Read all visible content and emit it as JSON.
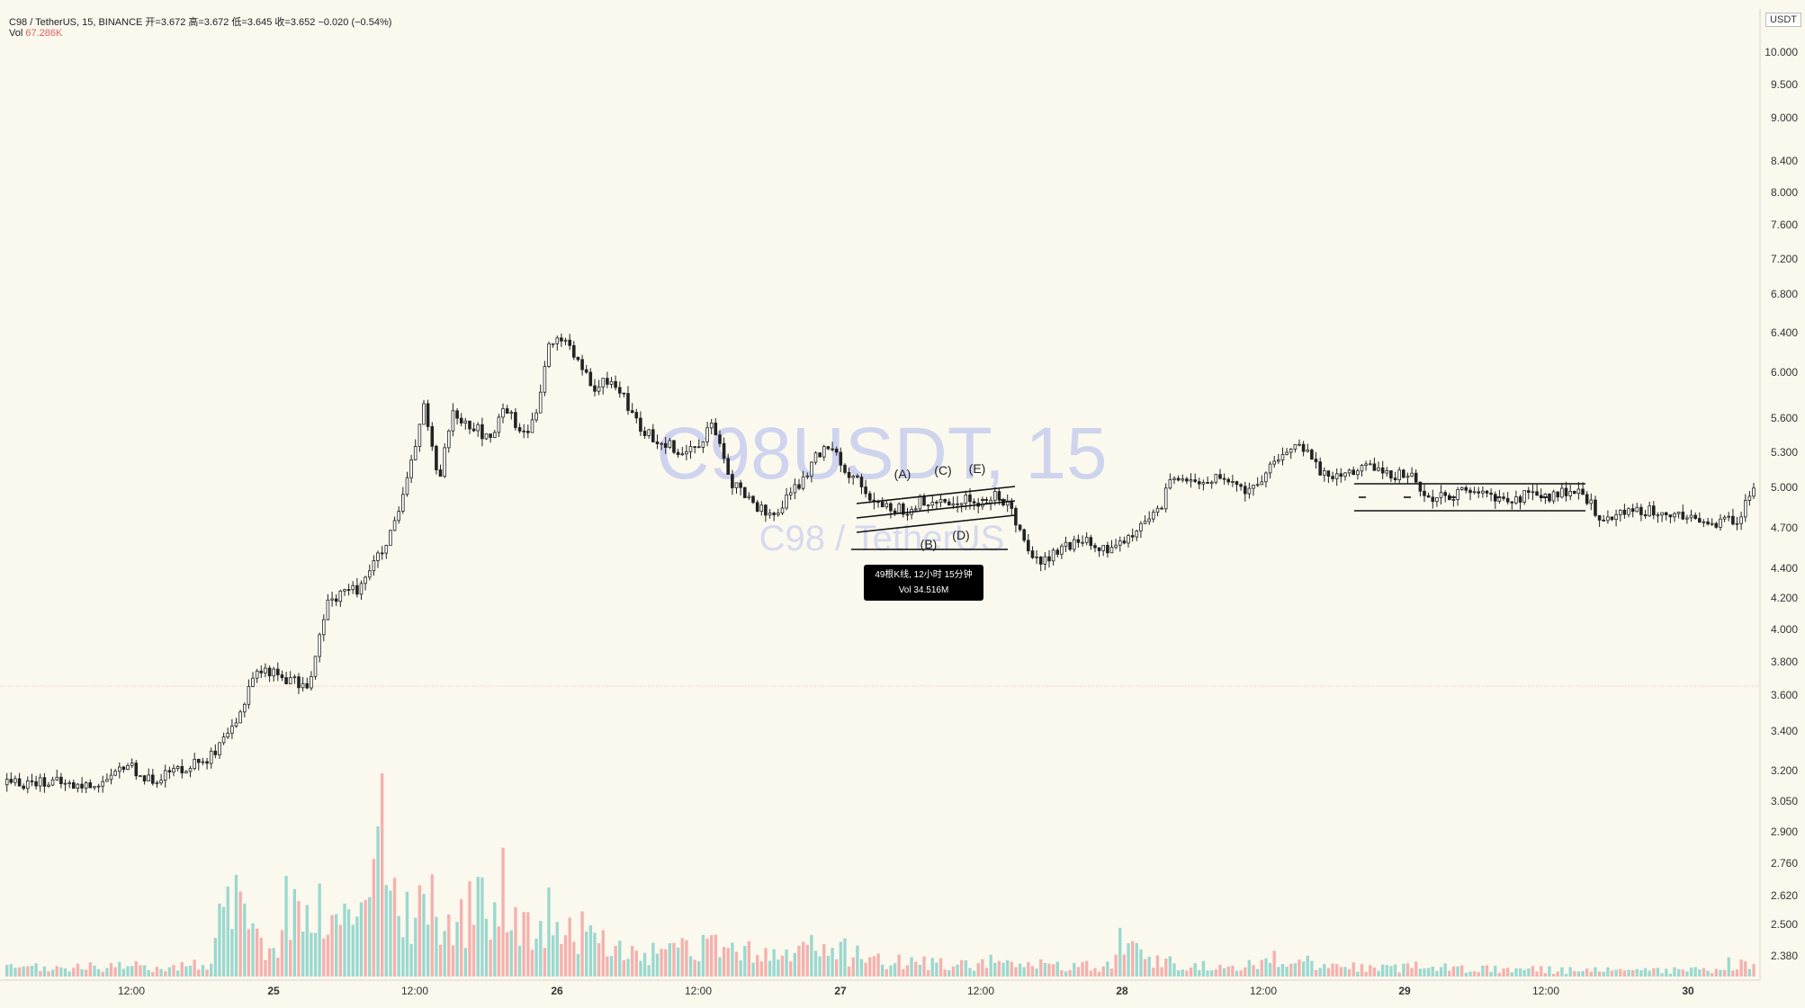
{
  "header": {
    "line1": "C98 / TetherUS, 15, BINANCE  开=3.672  高=3.672  低=3.645  收=3.652  −0.020 (−0.54%)",
    "vol_label": "Vol",
    "vol_value": "67.286K"
  },
  "watermark": {
    "symbol": "C98USDT, 15",
    "name": "C98 / TetherUS"
  },
  "axis_unit": "USDT",
  "tooltip": {
    "line1": "49根K线, 12小时 15分钟",
    "line2": "Vol 34.516M"
  },
  "pattern_labels": [
    "(A)",
    "(B)",
    "(C)",
    "(D)",
    "(E)"
  ],
  "colors": {
    "up": "#26a69a",
    "down": "#ef5350",
    "vol_up": "#9ad8cf",
    "vol_down": "#f4b1ae",
    "background": "#fbf8ee",
    "watermark": "#a9b6ee"
  },
  "chart_data": {
    "type": "candlestick",
    "symbol": "C98 / TetherUS",
    "interval": "15",
    "exchange": "BINANCE",
    "scale": "log",
    "y_ticks": [
      "10.000",
      "9.500",
      "9.000",
      "8.400",
      "8.000",
      "7.600",
      "7.200",
      "6.800",
      "6.400",
      "6.000",
      "5.600",
      "5.300",
      "5.000",
      "4.700",
      "4.400",
      "4.200",
      "4.000",
      "3.800",
      "3.600",
      "3.400",
      "3.200",
      "3.050",
      "2.900",
      "2.760",
      "2.620",
      "2.500",
      "2.380"
    ],
    "x_ticks": [
      "12:00",
      "25",
      "12:00",
      "26",
      "12:00",
      "27",
      "12:00",
      "28",
      "12:00",
      "29",
      "12:00",
      "30"
    ],
    "price_path": [
      [
        0,
        3.13
      ],
      [
        5,
        3.15
      ],
      [
        10,
        3.12
      ],
      [
        14,
        3.15
      ],
      [
        16,
        3.24
      ],
      [
        19,
        3.15
      ],
      [
        24,
        3.22
      ],
      [
        28,
        3.28
      ],
      [
        31,
        3.44
      ],
      [
        33,
        3.72
      ],
      [
        35,
        3.75
      ],
      [
        38,
        3.69
      ],
      [
        40,
        3.65
      ],
      [
        41,
        3.71
      ],
      [
        43,
        4.15
      ],
      [
        45,
        4.25
      ],
      [
        47,
        4.25
      ],
      [
        49,
        4.42
      ],
      [
        51,
        4.55
      ],
      [
        53,
        4.85
      ],
      [
        55,
        5.35
      ],
      [
        56,
        5.75
      ],
      [
        58,
        5.02
      ],
      [
        60,
        5.68
      ],
      [
        62,
        5.55
      ],
      [
        63,
        5.52
      ],
      [
        65,
        5.38
      ],
      [
        67,
        5.72
      ],
      [
        69,
        5.48
      ],
      [
        71,
        5.55
      ],
      [
        73,
        6.28
      ],
      [
        75,
        6.35
      ],
      [
        77,
        6.08
      ],
      [
        79,
        5.82
      ],
      [
        81,
        5.95
      ],
      [
        83,
        5.78
      ],
      [
        85,
        5.52
      ],
      [
        87,
        5.42
      ],
      [
        89,
        5.38
      ],
      [
        91,
        5.28
      ],
      [
        93,
        5.38
      ],
      [
        95,
        5.55
      ],
      [
        97,
        5.08
      ],
      [
        99,
        4.95
      ],
      [
        101,
        4.85
      ],
      [
        103,
        4.78
      ],
      [
        105,
        4.92
      ],
      [
        107,
        5.05
      ],
      [
        109,
        5.28
      ],
      [
        111,
        5.38
      ],
      [
        113,
        5.12
      ],
      [
        115,
        5.03
      ],
      [
        117,
        4.85
      ],
      [
        119,
        4.85
      ],
      [
        121,
        4.82
      ],
      [
        123,
        4.9
      ],
      [
        125,
        4.86
      ],
      [
        127,
        4.88
      ],
      [
        129,
        4.92
      ],
      [
        131,
        4.86
      ],
      [
        133,
        4.93
      ],
      [
        135,
        4.85
      ],
      [
        137,
        4.6
      ],
      [
        139,
        4.42
      ],
      [
        141,
        4.52
      ],
      [
        143,
        4.56
      ],
      [
        145,
        4.62
      ],
      [
        147,
        4.52
      ],
      [
        149,
        4.55
      ],
      [
        151,
        4.65
      ],
      [
        153,
        4.72
      ],
      [
        155,
        4.82
      ],
      [
        157,
        5.12
      ],
      [
        159,
        5.02
      ],
      [
        161,
        5.05
      ],
      [
        163,
        5.08
      ],
      [
        165,
        5.02
      ],
      [
        167,
        4.96
      ],
      [
        169,
        5.1
      ],
      [
        171,
        5.22
      ],
      [
        173,
        5.38
      ],
      [
        175,
        5.28
      ],
      [
        177,
        5.12
      ],
      [
        179,
        5.1
      ],
      [
        181,
        5.15
      ],
      [
        183,
        5.18
      ],
      [
        185,
        5.14
      ],
      [
        187,
        5.1
      ],
      [
        189,
        5.12
      ],
      [
        191,
        4.9
      ],
      [
        193,
        4.96
      ],
      [
        195,
        4.94
      ],
      [
        197,
        4.98
      ],
      [
        199,
        4.95
      ],
      [
        201,
        4.9
      ],
      [
        203,
        4.92
      ],
      [
        205,
        4.94
      ],
      [
        207,
        4.92
      ],
      [
        209,
        4.95
      ],
      [
        211,
        4.98
      ],
      [
        213,
        4.88
      ],
      [
        215,
        4.72
      ],
      [
        217,
        4.82
      ],
      [
        219,
        4.85
      ],
      [
        221,
        4.82
      ],
      [
        223,
        4.8
      ],
      [
        225,
        4.78
      ],
      [
        227,
        4.76
      ],
      [
        229,
        4.74
      ],
      [
        231,
        4.74
      ],
      [
        233,
        4.76
      ],
      [
        235,
        5.01
      ]
    ],
    "volume_path": [
      [
        0,
        0.04
      ],
      [
        20,
        0.05
      ],
      [
        27,
        0.06
      ],
      [
        29,
        0.32
      ],
      [
        31,
        0.34
      ],
      [
        33,
        0.2
      ],
      [
        36,
        0.12
      ],
      [
        38,
        0.42
      ],
      [
        40,
        0.28
      ],
      [
        43,
        0.35
      ],
      [
        46,
        0.25
      ],
      [
        50,
        0.82
      ],
      [
        53,
        0.3
      ],
      [
        57,
        0.38
      ],
      [
        60,
        0.22
      ],
      [
        67,
        0.48
      ],
      [
        69,
        0.24
      ],
      [
        73,
        0.3
      ],
      [
        79,
        0.18
      ],
      [
        85,
        0.1
      ],
      [
        95,
        0.14
      ],
      [
        105,
        0.1
      ],
      [
        109,
        0.15
      ],
      [
        113,
        0.12
      ],
      [
        120,
        0.07
      ],
      [
        130,
        0.06
      ],
      [
        135,
        0.08
      ],
      [
        140,
        0.05
      ],
      [
        149,
        0.05
      ],
      [
        150,
        0.2
      ],
      [
        153,
        0.08
      ],
      [
        160,
        0.05
      ],
      [
        165,
        0.05
      ],
      [
        170,
        0.09
      ],
      [
        180,
        0.05
      ],
      [
        185,
        0.04
      ],
      [
        190,
        0.05
      ],
      [
        200,
        0.04
      ],
      [
        210,
        0.03
      ],
      [
        220,
        0.03
      ],
      [
        230,
        0.03
      ],
      [
        232,
        0.07
      ],
      [
        235,
        0.05
      ]
    ]
  }
}
